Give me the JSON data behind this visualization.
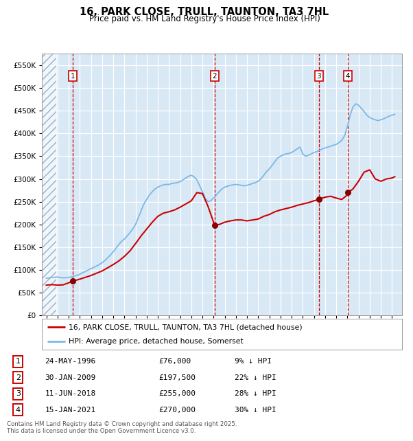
{
  "title_line1": "16, PARK CLOSE, TRULL, TAUNTON, TA3 7HL",
  "title_line2": "Price paid vs. HM Land Registry's House Price Index (HPI)",
  "footnote": "Contains HM Land Registry data © Crown copyright and database right 2025.\nThis data is licensed under the Open Government Licence v3.0.",
  "legend_line1": "16, PARK CLOSE, TRULL, TAUNTON, TA3 7HL (detached house)",
  "legend_line2": "HPI: Average price, detached house, Somerset",
  "bg_color": "#d8e8f5",
  "hpi_color": "#7ab8e8",
  "price_color": "#cc0000",
  "sale_marker_color": "#880000",
  "vline_color": "#cc0000",
  "ylim": [
    0,
    575000
  ],
  "yticks": [
    0,
    50000,
    100000,
    150000,
    200000,
    250000,
    300000,
    350000,
    400000,
    450000,
    500000,
    550000
  ],
  "xlim_start": 1993.6,
  "xlim_end": 2025.9,
  "sales": [
    {
      "num": 1,
      "date_str": "24-MAY-1996",
      "year": 1996.39,
      "price": 76000,
      "pct": "9%",
      "dir": "↓"
    },
    {
      "num": 2,
      "date_str": "30-JAN-2009",
      "year": 2009.08,
      "price": 197500,
      "pct": "22%",
      "dir": "↓"
    },
    {
      "num": 3,
      "date_str": "11-JUN-2018",
      "year": 2018.44,
      "price": 255000,
      "pct": "28%",
      "dir": "↓"
    },
    {
      "num": 4,
      "date_str": "15-JAN-2021",
      "year": 2021.04,
      "price": 270000,
      "pct": "30%",
      "dir": "↓"
    }
  ],
  "hpi_data": {
    "years": [
      1994.0,
      1994.083,
      1994.167,
      1994.25,
      1994.333,
      1994.417,
      1994.5,
      1994.583,
      1994.667,
      1994.75,
      1994.833,
      1994.917,
      1995.0,
      1995.083,
      1995.167,
      1995.25,
      1995.333,
      1995.417,
      1995.5,
      1995.583,
      1995.667,
      1995.75,
      1995.833,
      1995.917,
      1996.0,
      1996.083,
      1996.167,
      1996.25,
      1996.333,
      1996.417,
      1996.5,
      1996.583,
      1996.667,
      1996.75,
      1996.833,
      1996.917,
      1997.0,
      1997.25,
      1997.5,
      1997.75,
      1998.0,
      1998.25,
      1998.5,
      1998.75,
      1999.0,
      1999.25,
      1999.5,
      1999.75,
      2000.0,
      2000.25,
      2000.5,
      2000.75,
      2001.0,
      2001.25,
      2001.5,
      2001.75,
      2002.0,
      2002.25,
      2002.5,
      2002.75,
      2003.0,
      2003.25,
      2003.5,
      2003.75,
      2004.0,
      2004.25,
      2004.5,
      2004.75,
      2005.0,
      2005.25,
      2005.5,
      2005.75,
      2006.0,
      2006.25,
      2006.5,
      2006.75,
      2007.0,
      2007.25,
      2007.5,
      2007.75,
      2008.0,
      2008.25,
      2008.5,
      2008.75,
      2009.0,
      2009.25,
      2009.5,
      2009.75,
      2010.0,
      2010.25,
      2010.5,
      2010.75,
      2011.0,
      2011.25,
      2011.5,
      2011.75,
      2012.0,
      2012.25,
      2012.5,
      2012.75,
      2013.0,
      2013.25,
      2013.5,
      2013.75,
      2014.0,
      2014.25,
      2014.5,
      2014.75,
      2015.0,
      2015.25,
      2015.5,
      2015.75,
      2016.0,
      2016.25,
      2016.5,
      2016.75,
      2017.0,
      2017.25,
      2017.5,
      2017.75,
      2018.0,
      2018.25,
      2018.5,
      2018.75,
      2019.0,
      2019.25,
      2019.5,
      2019.75,
      2020.0,
      2020.25,
      2020.5,
      2020.75,
      2021.0,
      2021.25,
      2021.5,
      2021.75,
      2022.0,
      2022.25,
      2022.5,
      2022.75,
      2023.0,
      2023.25,
      2023.5,
      2023.75,
      2024.0,
      2024.25,
      2024.5,
      2024.75,
      2025.0,
      2025.25
    ],
    "values": [
      82000,
      82500,
      82200,
      82800,
      83000,
      83200,
      83500,
      83800,
      84000,
      84200,
      84500,
      84800,
      84500,
      84200,
      84000,
      83800,
      83500,
      83200,
      83000,
      82800,
      83000,
      83200,
      83500,
      83800,
      84000,
      84200,
      84500,
      85000,
      85500,
      86000,
      87000,
      87500,
      88000,
      88500,
      89000,
      89500,
      91000,
      94000,
      97000,
      100000,
      103000,
      106000,
      109000,
      112000,
      116000,
      121000,
      127000,
      133000,
      140000,
      148000,
      156000,
      163000,
      168000,
      175000,
      182000,
      190000,
      200000,
      215000,
      230000,
      245000,
      255000,
      265000,
      272000,
      278000,
      282000,
      285000,
      287000,
      288000,
      288000,
      290000,
      291000,
      292000,
      294000,
      298000,
      302000,
      306000,
      308000,
      305000,
      298000,
      285000,
      272000,
      258000,
      250000,
      252000,
      258000,
      265000,
      272000,
      278000,
      282000,
      284000,
      286000,
      287000,
      288000,
      287000,
      286000,
      285000,
      286000,
      288000,
      290000,
      292000,
      295000,
      300000,
      308000,
      316000,
      322000,
      330000,
      338000,
      346000,
      350000,
      353000,
      355000,
      356000,
      358000,
      362000,
      366000,
      370000,
      355000,
      350000,
      352000,
      355000,
      358000,
      360000,
      363000,
      366000,
      368000,
      370000,
      372000,
      374000,
      376000,
      380000,
      385000,
      395000,
      415000,
      440000,
      458000,
      465000,
      462000,
      455000,
      448000,
      440000,
      435000,
      432000,
      430000,
      428000,
      430000,
      432000,
      435000,
      438000,
      440000,
      442000
    ]
  },
  "price_data": {
    "years": [
      1994.0,
      1994.5,
      1995.0,
      1995.5,
      1996.0,
      1996.39,
      1996.5,
      1997.0,
      1997.5,
      1998.0,
      1998.5,
      1999.0,
      1999.5,
      2000.0,
      2000.5,
      2001.0,
      2001.5,
      2002.0,
      2002.5,
      2003.0,
      2003.5,
      2004.0,
      2004.5,
      2005.0,
      2005.5,
      2006.0,
      2006.5,
      2007.0,
      2007.5,
      2008.0,
      2008.5,
      2009.0,
      2009.08,
      2009.5,
      2010.0,
      2010.5,
      2011.0,
      2011.5,
      2012.0,
      2012.5,
      2013.0,
      2013.5,
      2014.0,
      2014.5,
      2015.0,
      2015.5,
      2016.0,
      2016.5,
      2017.0,
      2017.5,
      2018.0,
      2018.44,
      2018.5,
      2019.0,
      2019.5,
      2020.0,
      2020.5,
      2021.0,
      2021.04,
      2021.5,
      2022.0,
      2022.5,
      2023.0,
      2023.5,
      2024.0,
      2024.5,
      2025.0,
      2025.25
    ],
    "values": [
      67000,
      68000,
      67000,
      67500,
      72000,
      76000,
      76500,
      80000,
      84000,
      88000,
      93000,
      98000,
      105000,
      112000,
      120000,
      130000,
      142000,
      158000,
      175000,
      190000,
      205000,
      218000,
      225000,
      228000,
      232000,
      238000,
      245000,
      252000,
      270000,
      268000,
      240000,
      205000,
      197500,
      200000,
      205000,
      208000,
      210000,
      210000,
      208000,
      210000,
      212000,
      218000,
      222000,
      228000,
      232000,
      235000,
      238000,
      242000,
      245000,
      248000,
      252000,
      255000,
      256000,
      260000,
      262000,
      258000,
      255000,
      265000,
      270000,
      278000,
      295000,
      315000,
      320000,
      300000,
      295000,
      300000,
      302000,
      305000
    ]
  }
}
